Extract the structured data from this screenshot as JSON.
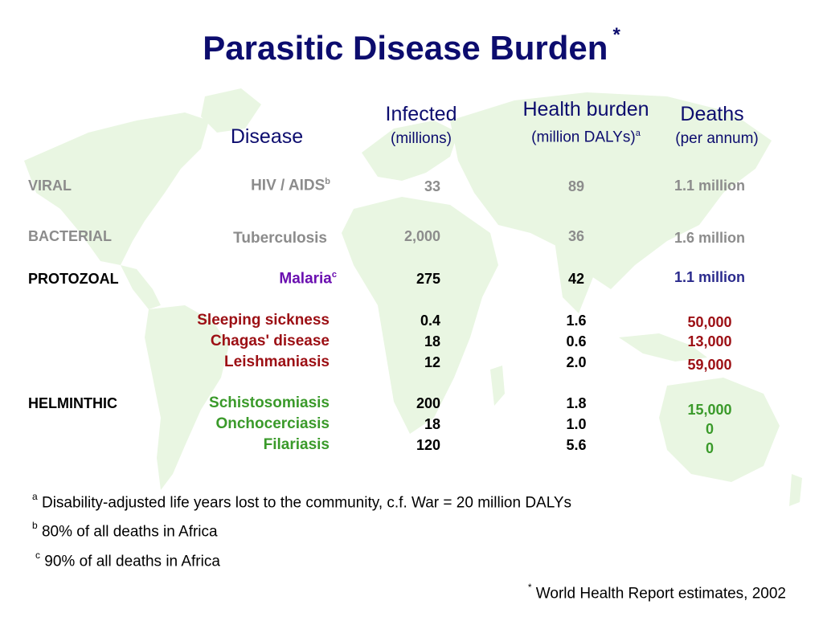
{
  "title": "Parasitic Disease Burden",
  "title_mark": "*",
  "headers": {
    "disease": "Disease",
    "infected": "Infected",
    "infected_unit": "(millions)",
    "health": "Health burden",
    "health_unit": "(million DALYs)",
    "health_mark": "a",
    "deaths": "Deaths",
    "deaths_unit": "(per annum)"
  },
  "categories": {
    "viral": "VIRAL",
    "bacterial": "BACTERIAL",
    "protozoal": "PROTOZOAL",
    "helminthic": "HELMINTHIC"
  },
  "rows": [
    {
      "disease": "HIV / AIDS",
      "mark": "b",
      "infected": "33",
      "dalys": "89",
      "deaths": "1.1 million"
    },
    {
      "disease": "Tuberculosis",
      "mark": "",
      "infected": "2,000",
      "dalys": "36",
      "deaths": "1.6 million"
    },
    {
      "disease": "Malaria",
      "mark": "c",
      "infected": "275",
      "dalys": "42",
      "deaths": "1.1 million"
    },
    {
      "disease": "Sleeping sickness",
      "mark": "",
      "infected": "0.4",
      "dalys": "1.6",
      "deaths": "50,000"
    },
    {
      "disease": "Chagas' disease",
      "mark": "",
      "infected": "18",
      "dalys": "0.6",
      "deaths": "13,000"
    },
    {
      "disease": "Leishmaniasis",
      "mark": "",
      "infected": "12",
      "dalys": "2.0",
      "deaths": "59,000"
    },
    {
      "disease": "Schistosomiasis",
      "mark": "",
      "infected": "200",
      "dalys": "1.8",
      "deaths": "15,000"
    },
    {
      "disease": "Onchocerciasis",
      "mark": "",
      "infected": "18",
      "dalys": "1.0",
      "deaths": "0"
    },
    {
      "disease": "Filariasis",
      "mark": "",
      "infected": "120",
      "dalys": "5.6",
      "deaths": "0"
    }
  ],
  "footnotes": {
    "a_mark": "a",
    "a_text": "Disability-adjusted life years lost to the community, c.f. War = 20 million DALYs",
    "b_mark": "b",
    "b_text": "80% of all deaths in Africa",
    "c_mark": "c",
    "c_text": "90% of all deaths in Africa",
    "source_mark": "*",
    "source_text": "World Health Report estimates, 2002"
  },
  "colors": {
    "title": "#0c0c6e",
    "gray": "#8c8c8c",
    "black": "#000000",
    "purple": "#6a0fb0",
    "deaths_blue": "#2a2a8c",
    "red": "#9c0f14",
    "green": "#3a9a2a",
    "map": "#e9f6e2"
  }
}
